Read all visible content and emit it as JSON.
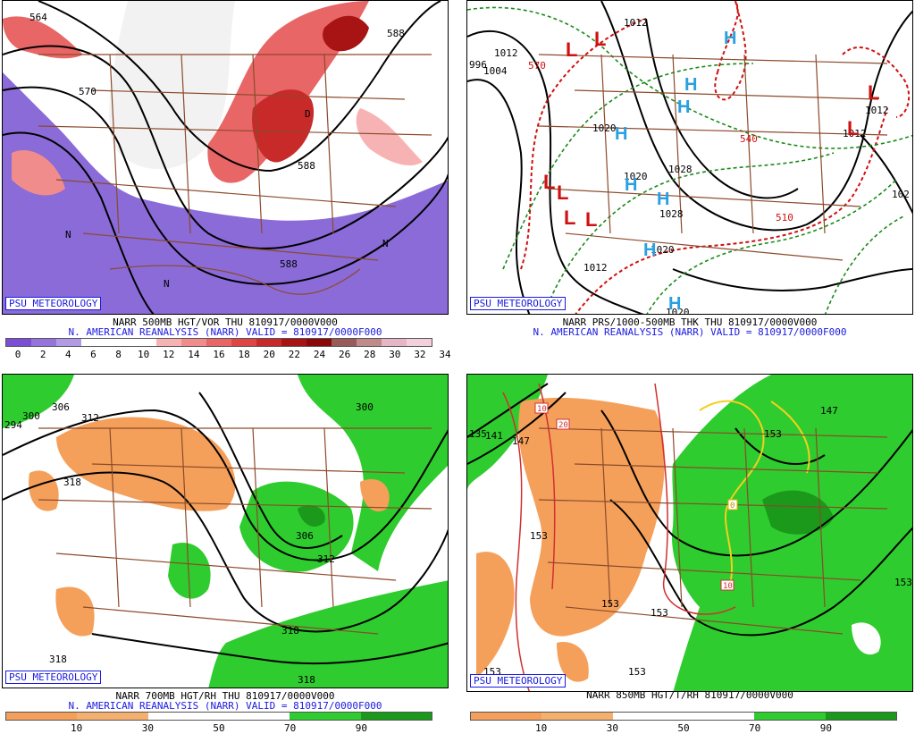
{
  "panels": [
    {
      "id": "500mb",
      "psu_label": "PSU METEOROLOGY",
      "caption_line1": "NARR 500MB HGT/VOR THU 810917/0000V000",
      "caption_line2": "N. AMERICAN REANALYSIS (NARR) VALID = 810917/0000F000",
      "colorbar": {
        "colors": [
          "#7a4fd6",
          "#9575dd",
          "#b39ae6",
          "#ffffff",
          "#ffffff",
          "#ffffff",
          "#f7b3b3",
          "#f08c8c",
          "#e86666",
          "#e04545",
          "#c82a2a",
          "#a81414",
          "#8a0a0a",
          "#9a5a5a",
          "#c08a8a",
          "#e6b6c6",
          "#f2d0dc"
        ],
        "tick_labels": [
          "0",
          "2",
          "4",
          "6",
          "8",
          "10",
          "12",
          "14",
          "16",
          "18",
          "20",
          "22",
          "24",
          "26",
          "28",
          "30",
          "32",
          "34"
        ]
      },
      "map_labels": [
        "564",
        "570",
        "N",
        "N",
        "N",
        "588",
        "588",
        "588",
        "D"
      ]
    },
    {
      "id": "prs",
      "psu_label": "PSU METEOROLOGY",
      "caption_line1": "NARR PRS/1000-500MB THK THU 810917/0000V000",
      "caption_line2": "N. AMERICAN REANALYSIS (NARR) VALID = 810917/0000F000",
      "map_labels": [
        "996",
        "1004",
        "1012",
        "1012",
        "1020",
        "1020",
        "1028",
        "1028",
        "1020",
        "1020",
        "1012",
        "1012",
        "1012",
        "570",
        "540",
        "510",
        "102"
      ],
      "lows": [
        "L",
        "L",
        "L",
        "L",
        "L",
        "L",
        "L",
        "L"
      ],
      "highs": [
        "H",
        "H",
        "H",
        "H",
        "H",
        "H",
        "H",
        "H"
      ]
    },
    {
      "id": "700mb",
      "psu_label": "PSU METEOROLOGY",
      "caption_line1": "NARR 700MB HGT/RH THU 810917/0000V000",
      "caption_line2": "N. AMERICAN REANALYSIS (NARR) VALID = 810917/0000F000",
      "colorbar": {
        "colors": [
          "#f5a05a",
          "#f5b070",
          "#ffffff",
          "#ffffff",
          "#2ecc2e",
          "#1a991a"
        ],
        "tick_labels": [
          "10",
          "30",
          "50",
          "70",
          "90"
        ]
      },
      "map_labels": [
        "294",
        "300",
        "306",
        "312",
        "318",
        "306",
        "312",
        "318",
        "318",
        "318",
        "300"
      ]
    },
    {
      "id": "850mb",
      "psu_label": "PSU METEOROLOGY",
      "caption_line1": "NARR 850MB HGT/T/RH 810917/0000V000",
      "colorbar": {
        "colors": [
          "#f5a05a",
          "#f5b070",
          "#ffffff",
          "#ffffff",
          "#2ecc2e",
          "#1a991a"
        ],
        "tick_labels": [
          "10",
          "30",
          "50",
          "70",
          "90"
        ]
      },
      "map_labels": [
        "135",
        "141",
        "147",
        "153",
        "153",
        "153",
        "153",
        "153",
        "153",
        "147",
        "153"
      ],
      "temp_labels": [
        "10",
        "20",
        "0",
        "10"
      ]
    }
  ]
}
